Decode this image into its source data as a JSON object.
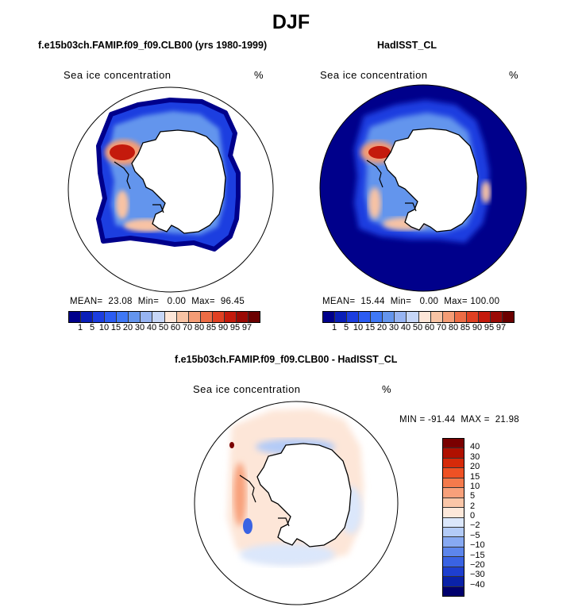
{
  "title": "DJF",
  "panels": [
    {
      "subtitle": "f.e15b03ch.FAMIP.f09_f09.CLB00 (yrs 1980-1999)",
      "variable": "Sea ice concentration",
      "units": "%",
      "stats": "MEAN=  23.08  Min=   0.00  Max=  96.45"
    },
    {
      "subtitle": "HadISST_CL",
      "variable": "Sea ice concentration",
      "units": "%",
      "stats": "MEAN=  15.44  Min=   0.00  Max= 100.00"
    },
    {
      "subtitle": "f.e15b03ch.FAMIP.f09_f09.CLB00 - HadISST_CL",
      "variable": "Sea ice concentration",
      "units": "%",
      "stats": "MIN = -91.44  MAX =  21.98"
    }
  ],
  "colorbar_abs": {
    "labels": [
      "1",
      "5",
      "10",
      "15",
      "20",
      "30",
      "40",
      "50",
      "60",
      "70",
      "80",
      "85",
      "90",
      "95",
      "97"
    ],
    "colors": [
      "#00008b",
      "#0a1fb8",
      "#1c3ee0",
      "#2b5cf2",
      "#3f78f5",
      "#6495ed",
      "#97b4f2",
      "#c6d6f7",
      "#fde6d8",
      "#f8c3a4",
      "#f49c75",
      "#ec6c45",
      "#e04022",
      "#c41a0c",
      "#9b0a05",
      "#6b0000"
    ]
  },
  "colorbar_diff": {
    "labels": [
      "40",
      "30",
      "20",
      "15",
      "10",
      "5",
      "2",
      "0",
      "−2",
      "−5",
      "−10",
      "−15",
      "−20",
      "−30",
      "−40"
    ],
    "colors": [
      "#7a0000",
      "#b01000",
      "#d62a0a",
      "#ef5124",
      "#f47a4c",
      "#f8a07a",
      "#fbc6a8",
      "#fde8da",
      "#dbe7fb",
      "#b3cbf7",
      "#87a9f2",
      "#5d86ec",
      "#3a63e3",
      "#1e3fcf",
      "#0a22a8",
      "#00006e"
    ]
  },
  "chart_data": [
    {
      "type": "heatmap",
      "title": "f.e15b03ch.FAMIP.f09_f09.CLB00 (yrs 1980-1999)",
      "variable": "Sea ice concentration",
      "units": "%",
      "projection": "south-polar-stereographic",
      "levels": [
        1,
        5,
        10,
        15,
        20,
        30,
        40,
        50,
        60,
        70,
        80,
        85,
        90,
        95,
        97
      ],
      "mean": 23.08,
      "min": 0.0,
      "max": 96.45
    },
    {
      "type": "heatmap",
      "title": "HadISST_CL",
      "variable": "Sea ice concentration",
      "units": "%",
      "projection": "south-polar-stereographic",
      "levels": [
        1,
        5,
        10,
        15,
        20,
        30,
        40,
        50,
        60,
        70,
        80,
        85,
        90,
        95,
        97
      ],
      "mean": 15.44,
      "min": 0.0,
      "max": 100.0
    },
    {
      "type": "heatmap",
      "title": "f.e15b03ch.FAMIP.f09_f09.CLB00 - HadISST_CL",
      "variable": "Sea ice concentration",
      "units": "%",
      "projection": "south-polar-stereographic",
      "levels": [
        -40,
        -30,
        -20,
        -15,
        -10,
        -5,
        -2,
        0,
        2,
        5,
        10,
        15,
        20,
        30,
        40
      ],
      "min": -91.44,
      "max": 21.98
    }
  ]
}
